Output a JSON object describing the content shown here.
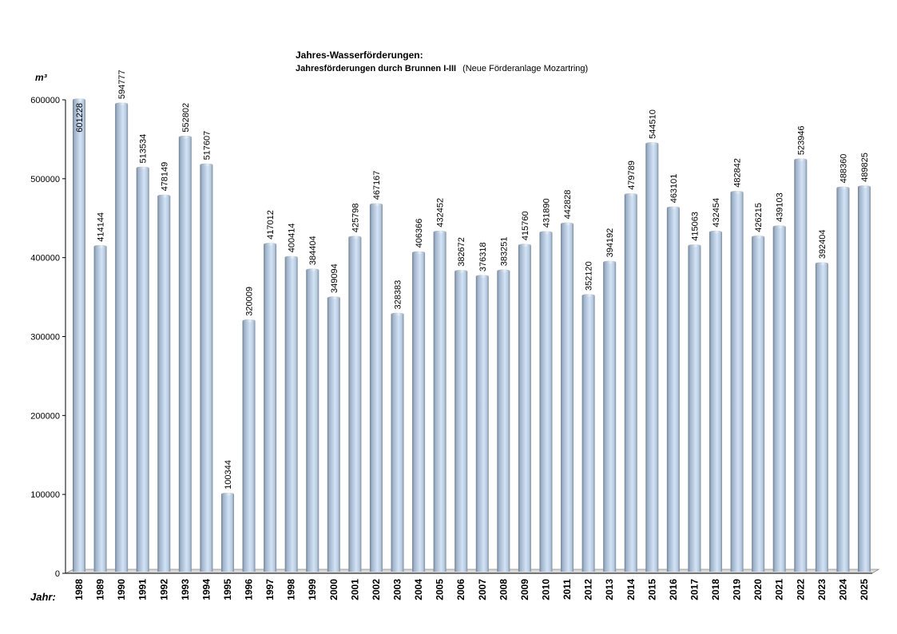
{
  "chart_data": {
    "type": "bar",
    "title": "Jahres-Wasserförderungen:",
    "subtitle_bold": "Jahresförderungen durch Brunnen I-III",
    "subtitle_note": "(Neue Förderanlage Mozartring)",
    "ylabel": "m³",
    "xlabel": "Jahr:",
    "ylim": [
      0,
      600000
    ],
    "yticks": [
      "0",
      "100000",
      "200000",
      "300000",
      "400000",
      "500000",
      "600000"
    ],
    "grid": false,
    "bar_color": "#b8cce4",
    "categories": [
      "1988",
      "1989",
      "1990",
      "1991",
      "1992",
      "1993",
      "1994",
      "1995",
      "1996",
      "1997",
      "1998",
      "1999",
      "2000",
      "2001",
      "2002",
      "2003",
      "2004",
      "2005",
      "2006",
      "2007",
      "2008",
      "2009",
      "2010",
      "2011",
      "2012",
      "2013",
      "2014",
      "2015",
      "2016",
      "2017",
      "2018",
      "2019",
      "2020",
      "2021",
      "2022",
      "2023",
      "2024",
      "2025"
    ],
    "values": [
      601228,
      414144,
      594777,
      513534,
      478149,
      552802,
      517607,
      100344,
      320009,
      417012,
      400414,
      384404,
      349094,
      425798,
      467167,
      328383,
      406366,
      432452,
      382672,
      376318,
      383251,
      415760,
      431890,
      442828,
      352120,
      394192,
      479789,
      544510,
      463101,
      415063,
      432454,
      482842,
      426215,
      439103,
      523946,
      392404,
      488360,
      489825
    ]
  }
}
